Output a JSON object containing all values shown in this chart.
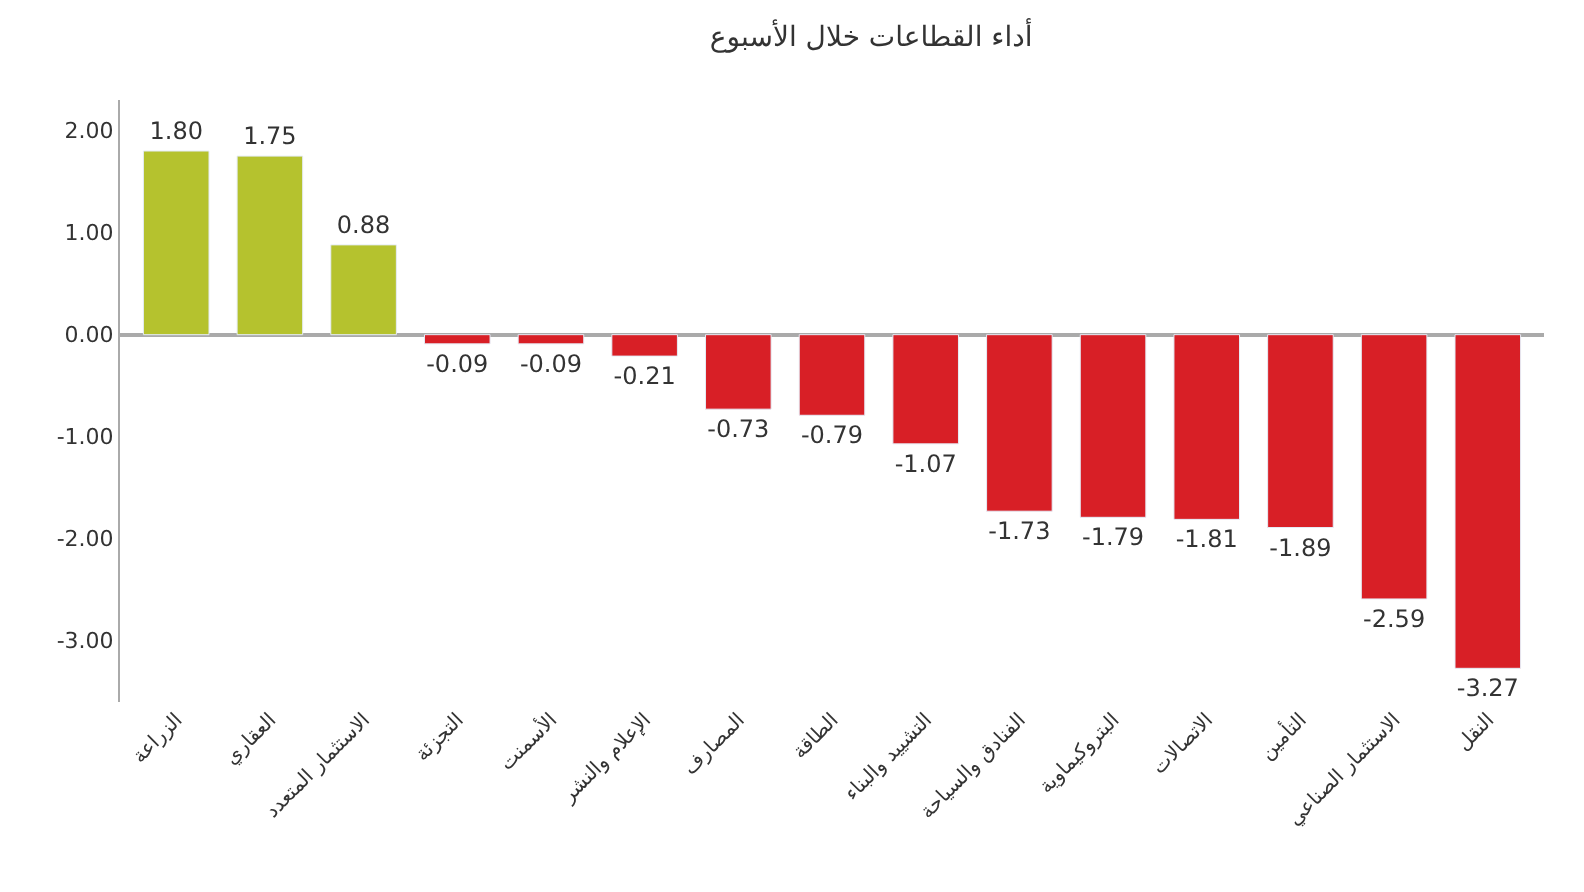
{
  "chart_data": {
    "type": "bar",
    "title": "أداء القطاعات خلال الأسبوع",
    "categories": [
      "الزراعة",
      "العقاري",
      "الاستثمار المتعدد",
      "التجزئة",
      "الأسمنت",
      "الإعلام والنشر",
      "المصارف",
      "الطاقة",
      "التشييد والبناء",
      "الفنادق والسياحة",
      "البتروكيماوية",
      "الاتصالات",
      "التأمين",
      "الاستثمار الصناعي",
      "النقل"
    ],
    "values": [
      1.8,
      1.75,
      0.88,
      -0.09,
      -0.09,
      -0.21,
      -0.73,
      -0.79,
      -1.07,
      -1.73,
      -1.79,
      -1.81,
      -1.89,
      -2.59,
      -3.27
    ],
    "colors": [
      "#b5c22e",
      "#b5c22e",
      "#b5c22e",
      "#d81f26",
      "#d81f26",
      "#d81f26",
      "#d81f26",
      "#d81f26",
      "#d81f26",
      "#d81f26",
      "#d81f26",
      "#d81f26",
      "#d81f26",
      "#d81f26",
      "#d81f26"
    ],
    "ylim": [
      -3.6,
      2.3
    ],
    "yticks": [
      {
        "value": -3,
        "label": "-3.00"
      },
      {
        "value": -2,
        "label": "-2.00"
      },
      {
        "value": -1,
        "label": "-1.00"
      },
      {
        "value": 0,
        "label": "0.00"
      },
      {
        "value": 1,
        "label": "1.00"
      },
      {
        "value": 2,
        "label": "2.00"
      }
    ],
    "value_labels": [
      "1.80",
      "1.75",
      "0.88",
      "-0.09",
      "-0.09",
      "-0.21",
      "-0.73",
      "-0.79",
      "-1.07",
      "-1.73",
      "-1.79",
      "-1.81",
      "-1.89",
      "-2.59",
      "-3.27"
    ],
    "legend": false
  }
}
